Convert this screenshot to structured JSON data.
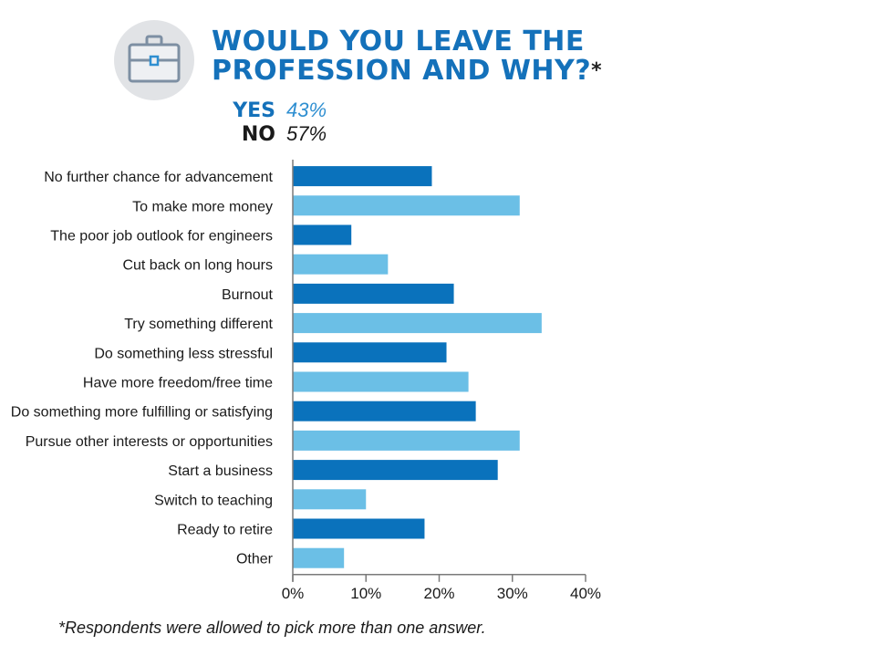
{
  "header": {
    "title_line1": "WOULD YOU LEAVE THE",
    "title_line2": "PROFESSION AND WHY?",
    "title_mark": "*",
    "icon": "briefcase-icon",
    "icon_bg_color": "#e1e3e6"
  },
  "answers": {
    "yes": {
      "label": "YES",
      "value": "43%"
    },
    "no": {
      "label": "NO",
      "value": "57%"
    }
  },
  "footnote": "*Respondents were allowed to pick more than one answer.",
  "colors": {
    "title": "#1471ba",
    "bar_dark": "#0a72bc",
    "bar_light": "#6bbfe6",
    "axis": "#7a7a7a"
  },
  "chart_data": {
    "type": "bar",
    "orientation": "horizontal",
    "categories": [
      "No further chance for advancement",
      "To make more money",
      "The poor job outlook for engineers",
      "Cut back on long hours",
      "Burnout",
      "Try something different",
      "Do something less stressful",
      "Have more freedom/free time",
      "Do something more fulfilling or satisfying",
      "Pursue other interests or opportunities",
      "Start a business",
      "Switch to teaching",
      "Ready to retire",
      "Other"
    ],
    "values": [
      19,
      31,
      8,
      13,
      22,
      34,
      21,
      24,
      25,
      31,
      28,
      10,
      18,
      7
    ],
    "unit": "%",
    "xlim": [
      0,
      40
    ],
    "xticks": [
      0,
      10,
      20,
      30,
      40
    ],
    "tick_labels": [
      "0%",
      "10%",
      "20%",
      "30%",
      "40%"
    ],
    "bar_colors": "alternating dark/light blue",
    "grid": false,
    "legend": "none"
  }
}
